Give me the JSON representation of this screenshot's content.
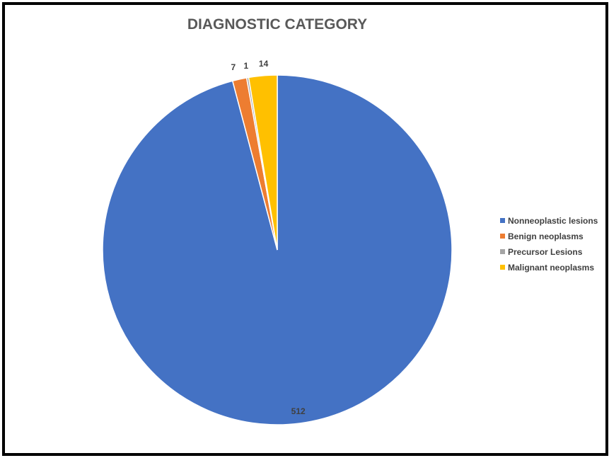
{
  "chart_data": {
    "type": "pie",
    "title": "DIAGNOSTIC CATEGORY",
    "categories": [
      "Nonneoplastic lesions",
      "Benign neoplasms",
      "Precursor Lesions",
      "Malignant neoplasms"
    ],
    "values": [
      512,
      7,
      1,
      14
    ],
    "data_labels": [
      "512",
      "7",
      "1",
      "14"
    ],
    "colors": [
      "#4472C4",
      "#ED7D31",
      "#A5A5A5",
      "#FFC000"
    ],
    "legend_position": "right"
  }
}
